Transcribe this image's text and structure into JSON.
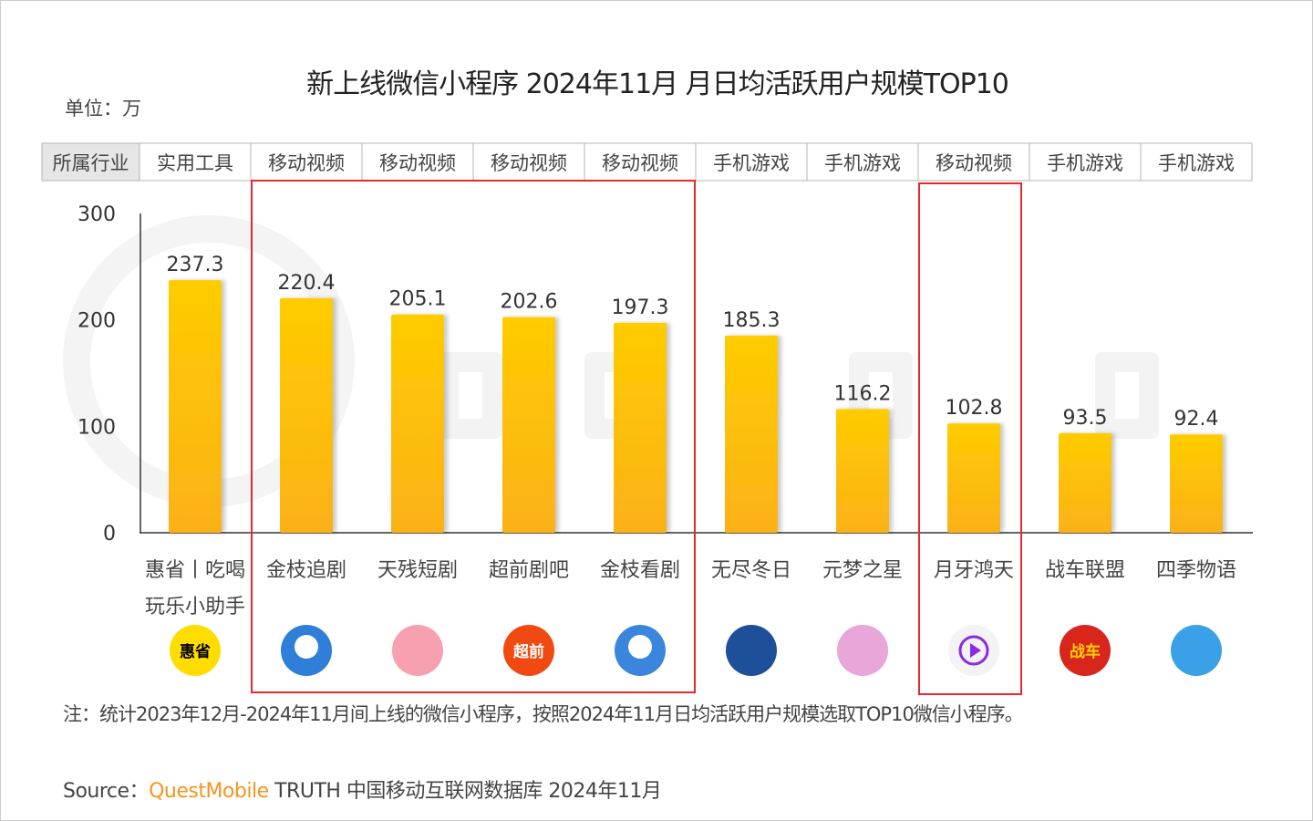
{
  "title": "新上线微信小程序 2024年11月 月日均活跃用户规模TOP10",
  "unit": "单位：万",
  "industry_header": "所属行业",
  "note": "注：统计2023年12月-2024年11月间上线的微信小程序，按照2024年11月日均活跃用户规模选取TOP10微信小程序。",
  "source": {
    "prefix": "Source：",
    "brand": "QuestMobile",
    "rest": " TRUTH 中国移动互联网数据库 2024年11月"
  },
  "watermark": "QUESTMOBILE",
  "colors": {
    "bar_top": "#ffcc00",
    "bar_bottom": "#fbb117",
    "highlight_box": "#e8282d",
    "brand": "#f7941d"
  },
  "chart_data": {
    "type": "bar",
    "ylim": [
      0,
      300
    ],
    "yticks": [
      0,
      100,
      200,
      300
    ],
    "categories": [
      "惠省丨吃喝玩乐小助手",
      "金枝追剧",
      "天残短剧",
      "超前剧吧",
      "金枝看剧",
      "无尽冬日",
      "元梦之星",
      "月牙鸿天",
      "战车联盟",
      "四季物语"
    ],
    "category_lines": [
      [
        "惠省丨吃喝",
        "玩乐小助手"
      ],
      [
        "金枝追剧"
      ],
      [
        "天残短剧"
      ],
      [
        "超前剧吧"
      ],
      [
        "金枝看剧"
      ],
      [
        "无尽冬日"
      ],
      [
        "元梦之星"
      ],
      [
        "月牙鸿天"
      ],
      [
        "战车联盟"
      ],
      [
        "四季物语"
      ]
    ],
    "industries": [
      "实用工具",
      "移动视频",
      "移动视频",
      "移动视频",
      "移动视频",
      "手机游戏",
      "手机游戏",
      "移动视频",
      "手机游戏",
      "手机游戏"
    ],
    "values": [
      237.3,
      220.4,
      205.1,
      202.6,
      197.3,
      185.3,
      116.2,
      102.8,
      93.5,
      92.4
    ],
    "icons": [
      {
        "name": "huisheng-logo-icon",
        "color": "#ffdd00",
        "text": "惠省",
        "textColor": "#000"
      },
      {
        "name": "film-reel-icon",
        "color": "#2f7fd8",
        "text": "",
        "textColor": "#fff"
      },
      {
        "name": "tv-icon",
        "color": "#f7a0b0",
        "text": "",
        "textColor": "#fff"
      },
      {
        "name": "chaoqian-logo-icon",
        "color": "#f04a12",
        "text": "超前",
        "textColor": "#fff"
      },
      {
        "name": "film-reel-icon",
        "color": "#3b86dd",
        "text": "",
        "textColor": "#fff"
      },
      {
        "name": "globe-icon",
        "color": "#1e4f9a",
        "text": "",
        "textColor": "#fff"
      },
      {
        "name": "game-character-icon",
        "color": "#e9a6d8",
        "text": "",
        "textColor": "#fff"
      },
      {
        "name": "play-icon",
        "color": "#f3f3f6",
        "text": "",
        "textColor": "#8a2be2"
      },
      {
        "name": "zhanche-logo-icon",
        "color": "#d8261c",
        "text": "战车",
        "textColor": "#ffd200"
      },
      {
        "name": "princess-avatar-icon",
        "color": "#3aa0e8",
        "text": "",
        "textColor": "#fff"
      }
    ],
    "highlighted_groups": [
      [
        1,
        4
      ],
      [
        7,
        7
      ]
    ],
    "xlabel": "",
    "ylabel": ""
  }
}
